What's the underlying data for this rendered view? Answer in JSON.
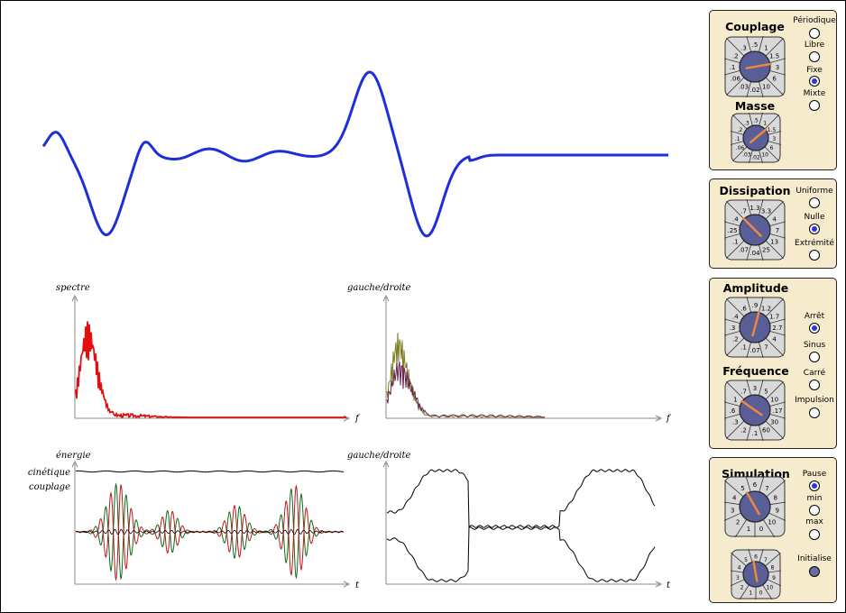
{
  "plots": {
    "spectrum_label": "spectre",
    "spectrum_axis": "f",
    "lr_label_top": "gauche/droite",
    "lr_axis_top": "f",
    "energy_label": "énergie",
    "energy_kinetic": "cinétique",
    "energy_coupling": "couplage",
    "energy_axis": "t",
    "lr_label_bottom": "gauche/droite",
    "lr_axis_bottom": "t"
  },
  "colors": {
    "wave": "#1c2fd8",
    "spectrum": "#e01010",
    "panel_bg": "#f7ebcd",
    "dial_center": "#5a5e96",
    "dial_pointer": "#f08a3a",
    "radio_selected": "#2f35d6",
    "energy_red": "#c01818",
    "energy_green": "#0f6a1c",
    "lr_olive": "#7a7a20",
    "lr_purple": "#6a2050"
  },
  "panels": {
    "couplage": {
      "title": "Couplage",
      "dial_labels": [
        ".5",
        "1",
        "1.5",
        "3",
        "6",
        "10",
        ".02",
        ".03",
        ".06",
        ".1",
        ".2",
        ".3"
      ],
      "dial_value": "1.5",
      "options": [
        "Périodique",
        "Libre",
        "Fixe",
        "Mixte"
      ],
      "selected": "Fixe"
    },
    "masse": {
      "title": "Masse",
      "dial_labels": [
        ".5",
        "1",
        "1.5",
        "3",
        "6",
        "10",
        ".02",
        ".03",
        ".06",
        ".1",
        ".2",
        ".3"
      ],
      "dial_value": "1"
    },
    "dissipation": {
      "title": "Dissipation",
      "dial_labels": [
        "1.3",
        "3.3",
        "4",
        "7",
        "13",
        "25",
        ".04",
        ".07",
        ".1",
        ".25",
        ".4",
        ".7"
      ],
      "dial_value": "3.3",
      "options": [
        "Uniforme",
        "Nulle",
        "Extrémité"
      ],
      "selected": "Nulle"
    },
    "amplitude": {
      "title": "Amplitude",
      "dial_labels": [
        ".9",
        "1.2",
        "1.7",
        "2.7",
        "4",
        "7",
        ".07",
        ".1",
        ".2",
        ".3",
        ".4",
        ".6"
      ],
      "dial_value": ".9",
      "options": [
        "Arrêt",
        "Sinus",
        "Carré",
        "Impulsion"
      ],
      "selected": "Arrêt"
    },
    "frequence": {
      "title": "Fréquence",
      "dial_labels": [
        "3",
        "5",
        "10",
        ".17",
        "30",
        "60",
        ".1",
        ".2",
        ".3",
        ".6",
        "1",
        ".7"
      ],
      "dial_value": ".6"
    },
    "simulation": {
      "title": "Simulation",
      "dial_labels": [
        "6",
        "7",
        "8",
        "9",
        "10",
        "0",
        "1",
        "2",
        "3",
        "4",
        "5"
      ],
      "dial_value": "1",
      "options": [
        "Pause",
        "min",
        "max"
      ],
      "selected": "Pause",
      "dial2_labels": [
        "6",
        "7",
        "8",
        "9",
        "10",
        "0",
        "1",
        "2",
        "3",
        "4",
        "5"
      ],
      "dial2_value": "2",
      "initialise_label": "Initialise"
    }
  }
}
